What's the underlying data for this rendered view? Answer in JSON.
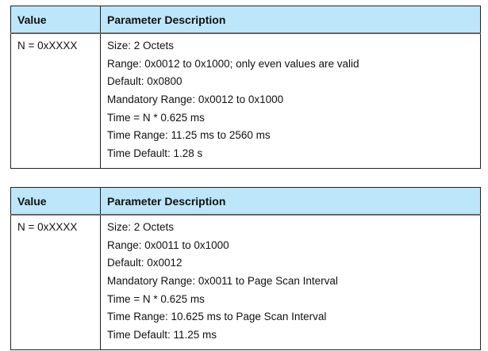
{
  "tables": [
    {
      "headers": [
        "Value",
        "Parameter Description"
      ],
      "value": "N = 0xXXXX",
      "description": [
        "Size: 2 Octets",
        "Range: 0x0012 to 0x1000; only even values are valid",
        "Default: 0x0800",
        "Mandatory Range: 0x0012 to 0x1000",
        "Time = N * 0.625 ms",
        "Time Range: 11.25 ms to 2560 ms",
        "Time Default: 1.28 s"
      ]
    },
    {
      "headers": [
        "Value",
        "Parameter Description"
      ],
      "value": "N = 0xXXXX",
      "description": [
        "Size: 2 Octets",
        "Range: 0x0011 to 0x1000",
        "Default: 0x0012",
        "Mandatory Range: 0x0011 to Page Scan Interval",
        "Time = N * 0.625 ms",
        "Time Range: 10.625 ms to Page Scan Interval",
        "Time Default: 11.25 ms"
      ]
    }
  ],
  "colors": {
    "header_bg": "#bde6fb"
  }
}
